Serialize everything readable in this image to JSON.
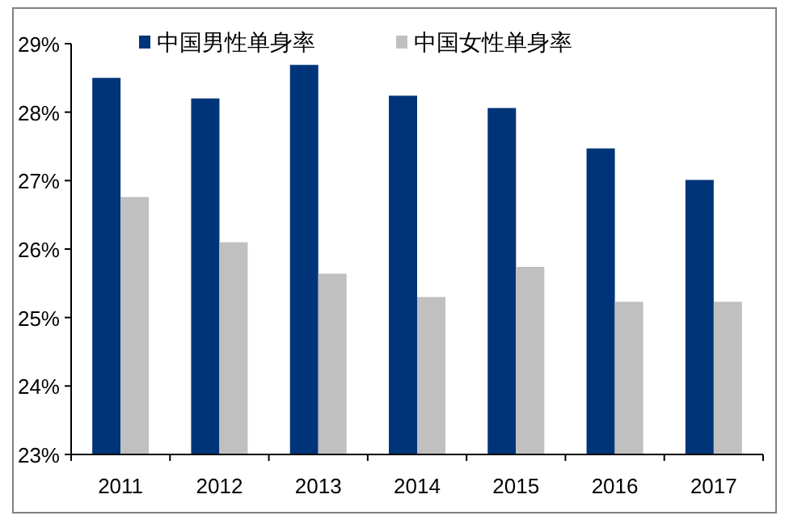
{
  "chart_data": {
    "type": "bar",
    "categories": [
      "2011",
      "2012",
      "2013",
      "2014",
      "2015",
      "2016",
      "2017"
    ],
    "series": [
      {
        "name": "中国男性单身率",
        "color": "#003478",
        "values": [
          28.5,
          28.2,
          28.69,
          28.24,
          28.06,
          27.47,
          27.01
        ]
      },
      {
        "name": "中国女性单身率",
        "color": "#c0c0c0",
        "values": [
          26.76,
          26.1,
          25.64,
          25.3,
          25.74,
          25.23,
          25.23
        ]
      }
    ],
    "ylim": [
      23,
      29
    ],
    "yticks": [
      {
        "value": 23,
        "label": "23%"
      },
      {
        "value": 24,
        "label": "24%"
      },
      {
        "value": 25,
        "label": "25%"
      },
      {
        "value": 26,
        "label": "26%"
      },
      {
        "value": 27,
        "label": "27%"
      },
      {
        "value": 28,
        "label": "28%"
      },
      {
        "value": 29,
        "label": "29%"
      }
    ],
    "grid": false,
    "legend": "top"
  }
}
